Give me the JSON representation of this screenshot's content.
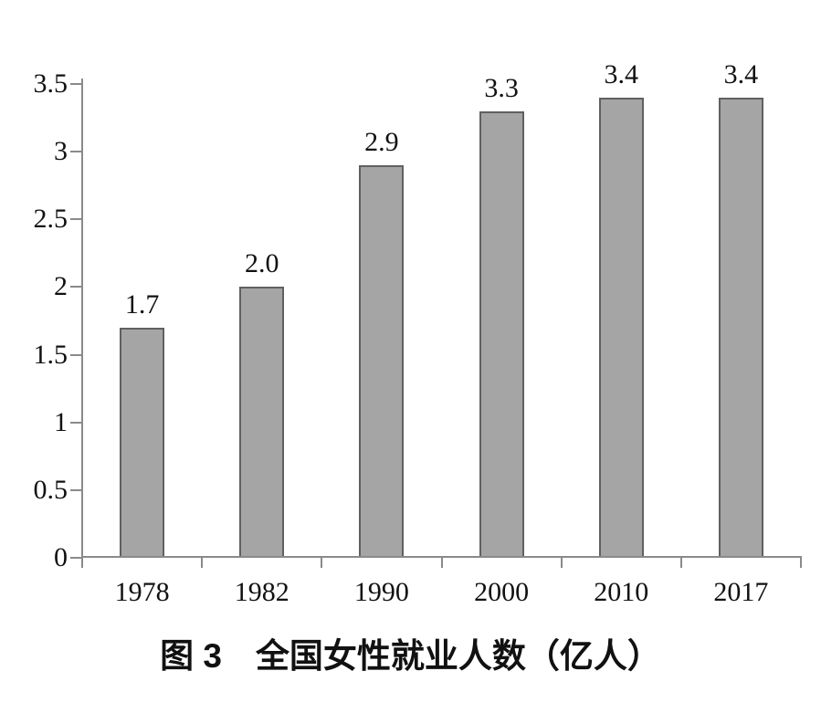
{
  "figure": {
    "title": "图 3　全国女性就业人数（亿人）"
  },
  "colors": {
    "background": "#ffffff",
    "bar_fill": "#a5a5a5",
    "bar_border": "#606060",
    "axis": "#8a8a8a",
    "text": "#111111"
  },
  "chart_data": {
    "type": "bar",
    "title": "图 3　全国女性就业人数（亿人）",
    "categories": [
      "1978",
      "1982",
      "1990",
      "2000",
      "2010",
      "2017"
    ],
    "values": [
      1.7,
      2.0,
      2.9,
      3.3,
      3.4,
      3.4
    ],
    "value_labels": [
      "1.7",
      "2.0",
      "2.9",
      "3.3",
      "3.4",
      "3.4"
    ],
    "xlabel": "",
    "ylabel": "",
    "ylim": [
      0,
      3.5
    ],
    "y_ticks": [
      0,
      0.5,
      1,
      1.5,
      2,
      2.5,
      3,
      3.5
    ],
    "y_tick_labels": [
      "0",
      "0.5",
      "1",
      "1.5",
      "2",
      "2.5",
      "3",
      "3.5"
    ],
    "grid": false,
    "legend": false,
    "bar_label_position": "above-bar",
    "title_position": "bottom-center"
  }
}
